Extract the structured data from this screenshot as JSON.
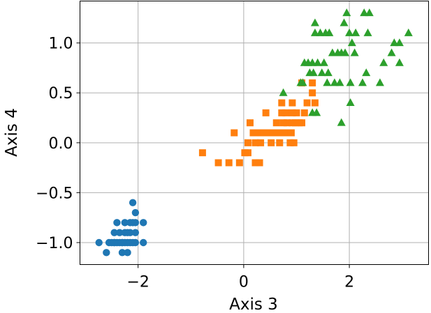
{
  "chart_data": {
    "type": "scatter",
    "xlabel": "Axis 3",
    "ylabel": "Axis 4",
    "xlim": [
      -3.1,
      3.5
    ],
    "ylim": [
      -1.22,
      1.42
    ],
    "grid": true,
    "xticks": [
      -2,
      0,
      2
    ],
    "xtick_labels": [
      "−2",
      "0",
      "2"
    ],
    "yticks": [
      -1.0,
      -0.5,
      0.0,
      0.5,
      1.0
    ],
    "ytick_labels": [
      "−1.0",
      "−0.5",
      "0.0",
      "0.5",
      "1.0"
    ],
    "series": [
      {
        "marker": "circle",
        "color": "#1f77b4",
        "points": [
          [
            -2.74,
            -1.0
          ],
          [
            -2.6,
            -1.1
          ],
          [
            -2.55,
            -1.0
          ],
          [
            -2.5,
            -1.0
          ],
          [
            -2.45,
            -1.0
          ],
          [
            -2.45,
            -0.9
          ],
          [
            -2.4,
            -0.8
          ],
          [
            -2.4,
            -1.0
          ],
          [
            -2.35,
            -0.9
          ],
          [
            -2.35,
            -1.0
          ],
          [
            -2.3,
            -1.0
          ],
          [
            -2.3,
            -1.1
          ],
          [
            -2.25,
            -0.8
          ],
          [
            -2.25,
            -0.9
          ],
          [
            -2.25,
            -1.0
          ],
          [
            -2.2,
            -1.1
          ],
          [
            -2.2,
            -1.0
          ],
          [
            -2.15,
            -0.8
          ],
          [
            -2.15,
            -0.9
          ],
          [
            -2.15,
            -1.0
          ],
          [
            -2.2,
            -0.9
          ],
          [
            -2.1,
            -0.6
          ],
          [
            -2.1,
            -0.8
          ],
          [
            -2.1,
            -1.0
          ],
          [
            -2.05,
            -0.7
          ],
          [
            -2.05,
            -0.8
          ],
          [
            -2.05,
            -0.9
          ],
          [
            -2.05,
            -1.0
          ],
          [
            -1.9,
            -0.8
          ],
          [
            -1.9,
            -1.0
          ],
          [
            -2.3,
            -1.0
          ],
          [
            -2.45,
            -1.0
          ]
        ]
      },
      {
        "marker": "square",
        "color": "#ff7f0e",
        "points": [
          [
            -0.78,
            -0.1
          ],
          [
            -0.48,
            -0.2
          ],
          [
            -0.28,
            -0.2
          ],
          [
            -0.18,
            0.1
          ],
          [
            -0.08,
            -0.2
          ],
          [
            0.02,
            -0.1
          ],
          [
            0.08,
            -0.1
          ],
          [
            0.08,
            0.0
          ],
          [
            0.12,
            0.2
          ],
          [
            0.18,
            0.1
          ],
          [
            0.22,
            0.0
          ],
          [
            0.22,
            -0.2
          ],
          [
            0.28,
            0.1
          ],
          [
            0.3,
            -0.2
          ],
          [
            0.32,
            0.0
          ],
          [
            0.38,
            0.1
          ],
          [
            0.42,
            0.3
          ],
          [
            0.48,
            0.1
          ],
          [
            0.52,
            0.0
          ],
          [
            0.55,
            0.1
          ],
          [
            0.62,
            0.1
          ],
          [
            0.62,
            0.2
          ],
          [
            0.68,
            0.0
          ],
          [
            0.7,
            0.1
          ],
          [
            0.72,
            0.3
          ],
          [
            0.72,
            0.4
          ],
          [
            0.78,
            0.1
          ],
          [
            0.8,
            0.3
          ],
          [
            0.82,
            0.2
          ],
          [
            0.88,
            0.0
          ],
          [
            0.9,
            0.1
          ],
          [
            0.92,
            0.2
          ],
          [
            0.92,
            0.3
          ],
          [
            0.92,
            0.4
          ],
          [
            0.98,
            0.2
          ],
          [
            1.0,
            0.3
          ],
          [
            1.05,
            0.2
          ],
          [
            1.1,
            0.6
          ],
          [
            1.15,
            0.3
          ],
          [
            1.2,
            0.4
          ],
          [
            1.3,
            0.6
          ],
          [
            1.3,
            0.5
          ],
          [
            1.35,
            0.4
          ],
          [
            0.75,
            0.2
          ],
          [
            0.6,
            0.1
          ],
          [
            0.95,
            0.0
          ],
          [
            1.1,
            0.2
          ]
        ]
      },
      {
        "marker": "triangle",
        "color": "#2ca02c",
        "points": [
          [
            0.75,
            0.5
          ],
          [
            1.08,
            0.6
          ],
          [
            1.12,
            0.6
          ],
          [
            1.15,
            0.8
          ],
          [
            1.22,
            0.8
          ],
          [
            1.25,
            0.7
          ],
          [
            1.3,
            0.3
          ],
          [
            1.3,
            0.8
          ],
          [
            1.32,
            0.7
          ],
          [
            1.35,
            1.2
          ],
          [
            1.35,
            1.1
          ],
          [
            1.38,
            0.3
          ],
          [
            1.4,
            0.8
          ],
          [
            1.45,
            1.1
          ],
          [
            1.48,
            0.7
          ],
          [
            1.52,
            0.8
          ],
          [
            1.55,
            1.1
          ],
          [
            1.58,
            0.6
          ],
          [
            1.6,
            0.7
          ],
          [
            1.62,
            1.1
          ],
          [
            1.68,
            0.9
          ],
          [
            1.72,
            0.6
          ],
          [
            1.78,
            0.9
          ],
          [
            1.82,
            0.6
          ],
          [
            1.85,
            0.2
          ],
          [
            1.85,
            0.9
          ],
          [
            1.9,
            1.2
          ],
          [
            1.92,
            0.9
          ],
          [
            1.95,
            1.3
          ],
          [
            2.0,
            1.1
          ],
          [
            2.02,
            0.4
          ],
          [
            2.02,
            0.6
          ],
          [
            2.05,
            1.0
          ],
          [
            2.1,
            0.9
          ],
          [
            2.12,
            1.1
          ],
          [
            2.25,
            0.6
          ],
          [
            2.28,
            1.3
          ],
          [
            2.32,
            0.7
          ],
          [
            2.35,
            1.1
          ],
          [
            2.38,
            1.3
          ],
          [
            2.58,
            0.6
          ],
          [
            2.65,
            0.8
          ],
          [
            2.8,
            0.9
          ],
          [
            2.85,
            1.0
          ],
          [
            2.95,
            0.8
          ],
          [
            2.95,
            1.0
          ],
          [
            3.12,
            1.1
          ]
        ]
      }
    ]
  }
}
